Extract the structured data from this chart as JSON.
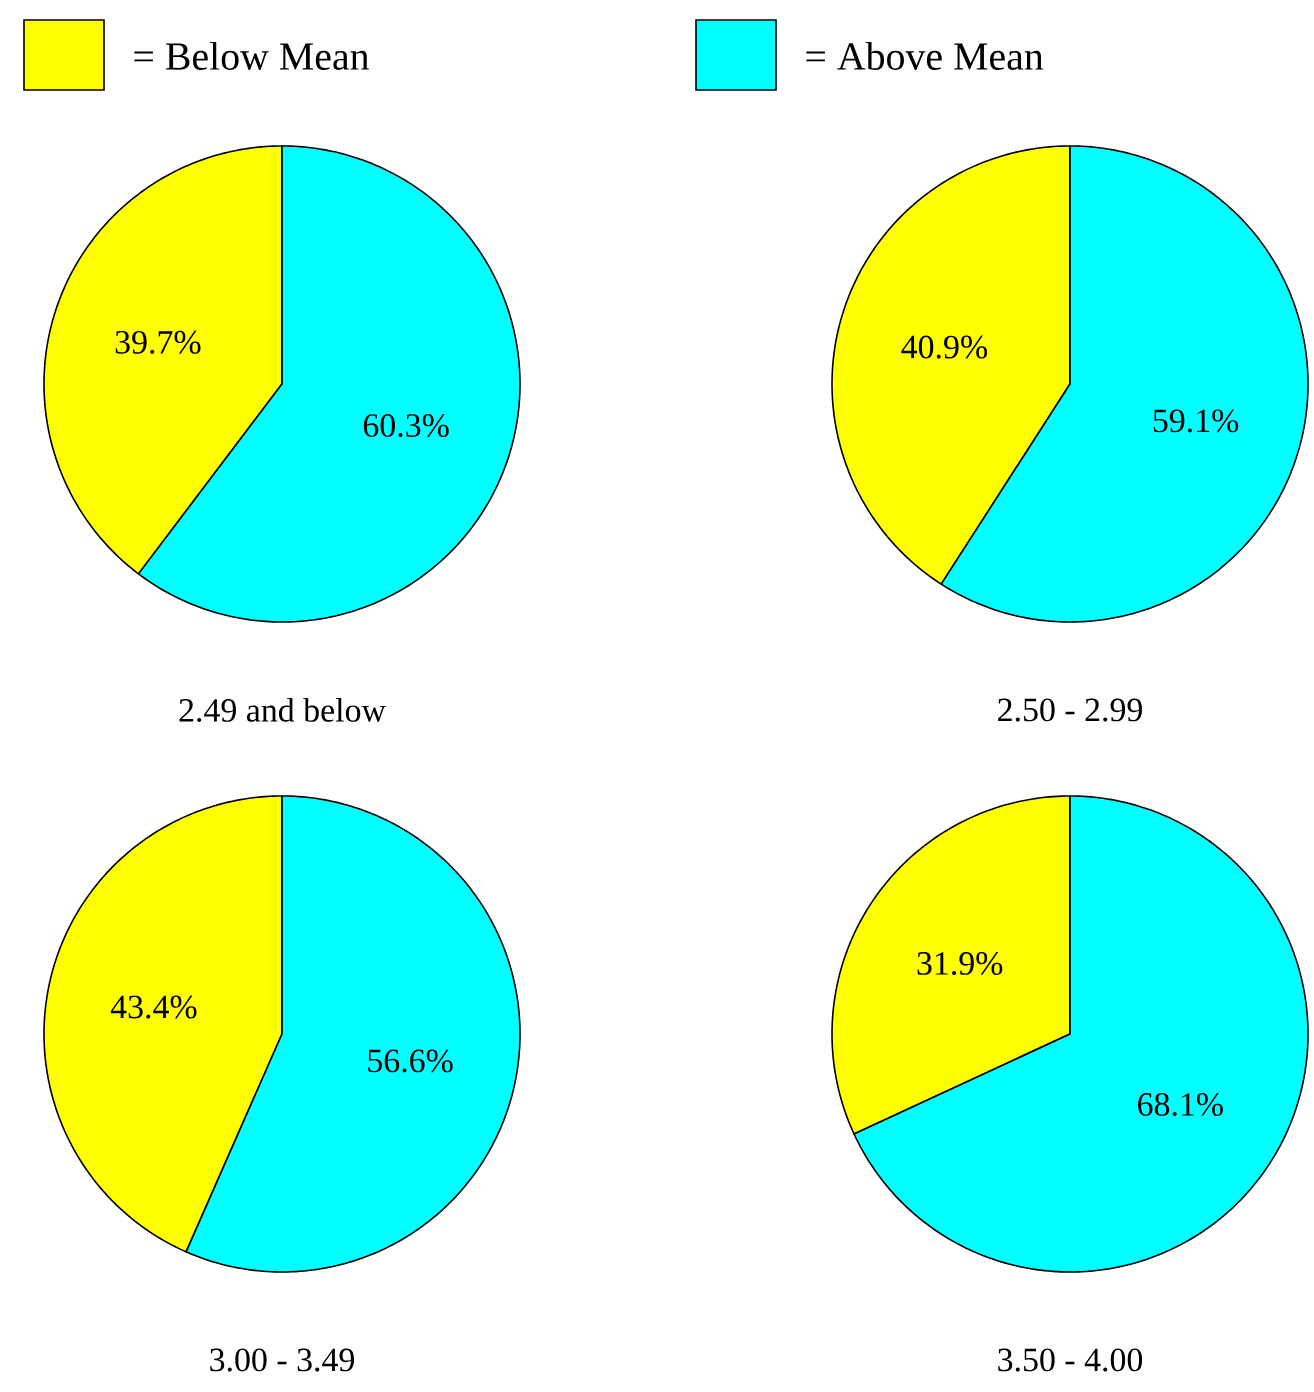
{
  "chart_data": [
    {
      "type": "pie",
      "xlabel": "2.49 and below",
      "categories": [
        "= Below Mean",
        "= Above Mean"
      ],
      "values": [
        39.7,
        60.3
      ],
      "colors": [
        "#ffff00",
        "#00ffff"
      ],
      "value_labels": [
        "39.7%",
        "60.3%"
      ],
      "legend": "top"
    },
    {
      "type": "pie",
      "xlabel": "2.50 - 2.99",
      "categories": [
        null,
        null
      ],
      "values": [
        40.9,
        59.1
      ],
      "colors": [
        "#ffff00",
        "#00ffff"
      ],
      "value_labels": [
        "40.9%",
        "59.1%"
      ]
    },
    {
      "type": "pie",
      "xlabel": "3.00 - 3.49",
      "categories": [
        null,
        null
      ],
      "values": [
        43.4,
        56.6
      ],
      "colors": [
        "#ffff00",
        "#00ffff"
      ],
      "value_labels": [
        "43.4%",
        "56.6%"
      ]
    },
    {
      "type": "pie",
      "xlabel": "3.50 - 4.00",
      "categories": [
        null,
        null
      ],
      "values": [
        31.9,
        68.1
      ],
      "colors": [
        "#ffff00",
        "#00ffff"
      ],
      "value_labels": [
        "31.9%",
        "68.1%"
      ]
    }
  ]
}
